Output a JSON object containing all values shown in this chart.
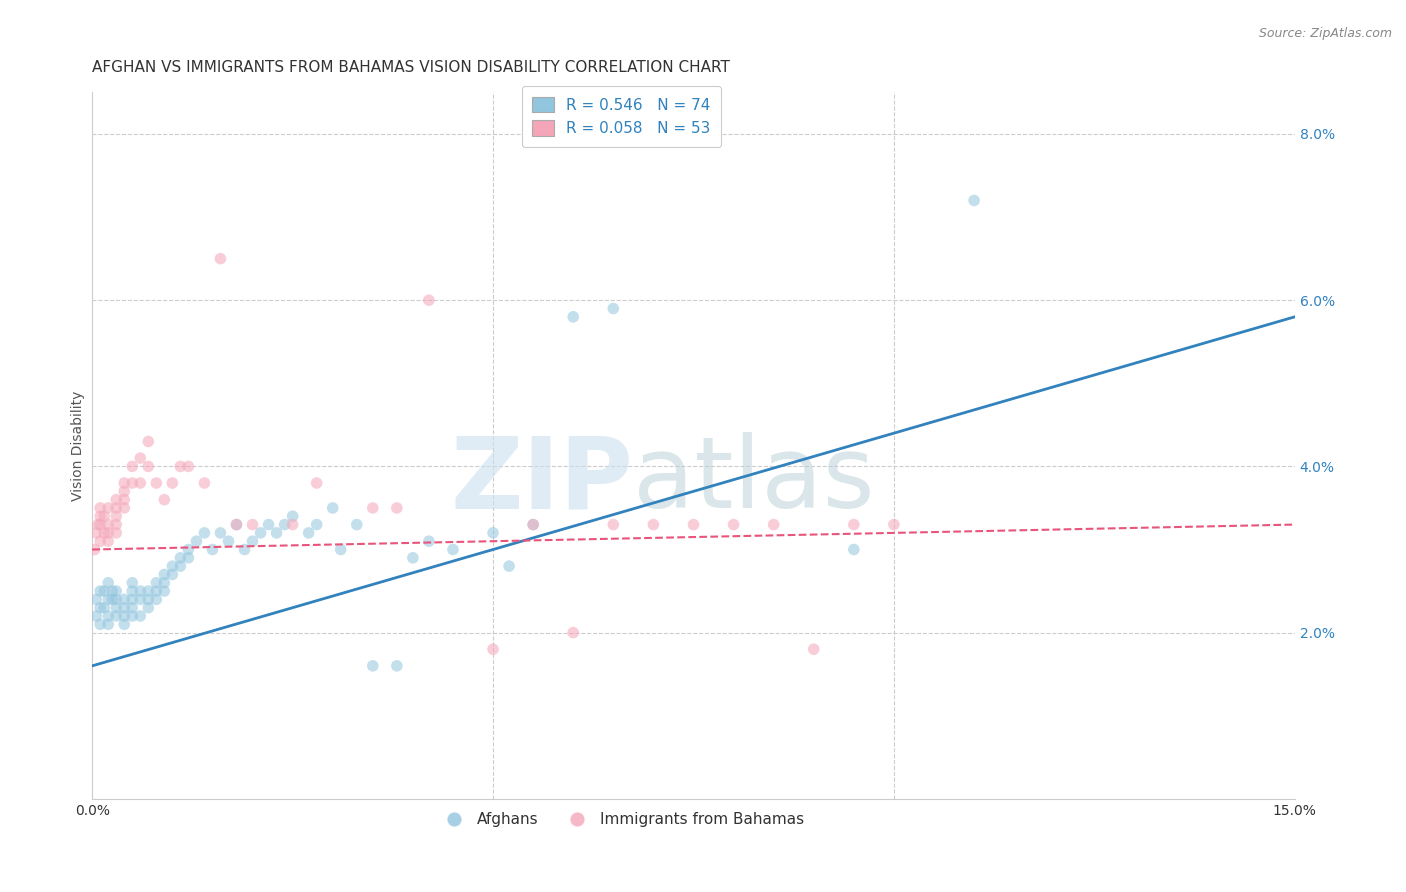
{
  "title": "AFGHAN VS IMMIGRANTS FROM BAHAMAS VISION DISABILITY CORRELATION CHART",
  "source": "Source: ZipAtlas.com",
  "ylabel": "Vision Disability",
  "xlim": [
    0.0,
    0.15
  ],
  "ylim": [
    0.0,
    0.085
  ],
  "xticks": [
    0.0,
    0.05,
    0.1,
    0.15
  ],
  "xticklabels": [
    "0.0%",
    "",
    "",
    "15.0%"
  ],
  "yticks_right": [
    0.02,
    0.04,
    0.06,
    0.08
  ],
  "yticklabels_right": [
    "2.0%",
    "4.0%",
    "6.0%",
    "8.0%"
  ],
  "blue_color": "#92c5de",
  "blue_color_line": "#3182bd",
  "pink_color": "#f4a5b8",
  "pink_color_line": "#e8547a",
  "background_color": "#ffffff",
  "grid_color": "#cccccc",
  "legend_r_blue": "R = 0.546",
  "legend_n_blue": "N = 74",
  "legend_r_pink": "R = 0.058",
  "legend_n_pink": "N = 53",
  "label_afghans": "Afghans",
  "label_bahamas": "Immigrants from Bahamas",
  "afghans_x": [
    0.0005,
    0.0005,
    0.001,
    0.001,
    0.001,
    0.0015,
    0.0015,
    0.002,
    0.002,
    0.002,
    0.002,
    0.0025,
    0.0025,
    0.003,
    0.003,
    0.003,
    0.003,
    0.004,
    0.004,
    0.004,
    0.004,
    0.005,
    0.005,
    0.005,
    0.005,
    0.005,
    0.006,
    0.006,
    0.006,
    0.007,
    0.007,
    0.007,
    0.008,
    0.008,
    0.008,
    0.009,
    0.009,
    0.009,
    0.01,
    0.01,
    0.011,
    0.011,
    0.012,
    0.012,
    0.013,
    0.014,
    0.015,
    0.016,
    0.017,
    0.018,
    0.019,
    0.02,
    0.021,
    0.022,
    0.023,
    0.024,
    0.025,
    0.027,
    0.028,
    0.03,
    0.031,
    0.033,
    0.035,
    0.038,
    0.04,
    0.042,
    0.045,
    0.05,
    0.052,
    0.055,
    0.06,
    0.065,
    0.095,
    0.11
  ],
  "afghans_y": [
    0.024,
    0.022,
    0.021,
    0.025,
    0.023,
    0.023,
    0.025,
    0.022,
    0.024,
    0.021,
    0.026,
    0.025,
    0.024,
    0.023,
    0.022,
    0.024,
    0.025,
    0.022,
    0.024,
    0.021,
    0.023,
    0.025,
    0.024,
    0.023,
    0.022,
    0.026,
    0.025,
    0.024,
    0.022,
    0.025,
    0.024,
    0.023,
    0.026,
    0.025,
    0.024,
    0.027,
    0.026,
    0.025,
    0.028,
    0.027,
    0.029,
    0.028,
    0.03,
    0.029,
    0.031,
    0.032,
    0.03,
    0.032,
    0.031,
    0.033,
    0.03,
    0.031,
    0.032,
    0.033,
    0.032,
    0.033,
    0.034,
    0.032,
    0.033,
    0.035,
    0.03,
    0.033,
    0.016,
    0.016,
    0.029,
    0.031,
    0.03,
    0.032,
    0.028,
    0.033,
    0.058,
    0.059,
    0.03,
    0.072
  ],
  "bahamas_x": [
    0.0003,
    0.0005,
    0.0007,
    0.001,
    0.001,
    0.001,
    0.001,
    0.0015,
    0.0015,
    0.002,
    0.002,
    0.002,
    0.002,
    0.003,
    0.003,
    0.003,
    0.003,
    0.003,
    0.004,
    0.004,
    0.004,
    0.004,
    0.005,
    0.005,
    0.006,
    0.006,
    0.007,
    0.007,
    0.008,
    0.009,
    0.01,
    0.011,
    0.012,
    0.014,
    0.016,
    0.018,
    0.02,
    0.025,
    0.028,
    0.035,
    0.038,
    0.042,
    0.05,
    0.055,
    0.06,
    0.065,
    0.07,
    0.075,
    0.08,
    0.085,
    0.09,
    0.095,
    0.1
  ],
  "bahamas_y": [
    0.03,
    0.032,
    0.033,
    0.035,
    0.033,
    0.031,
    0.034,
    0.032,
    0.034,
    0.033,
    0.035,
    0.032,
    0.031,
    0.036,
    0.033,
    0.034,
    0.032,
    0.035,
    0.037,
    0.035,
    0.036,
    0.038,
    0.038,
    0.04,
    0.041,
    0.038,
    0.043,
    0.04,
    0.038,
    0.036,
    0.038,
    0.04,
    0.04,
    0.038,
    0.065,
    0.033,
    0.033,
    0.033,
    0.038,
    0.035,
    0.035,
    0.06,
    0.018,
    0.033,
    0.02,
    0.033,
    0.033,
    0.033,
    0.033,
    0.033,
    0.018,
    0.033,
    0.033
  ],
  "blue_line_x": [
    0.0,
    0.15
  ],
  "blue_line_y": [
    0.016,
    0.058
  ],
  "pink_line_x": [
    0.0,
    0.15
  ],
  "pink_line_y": [
    0.03,
    0.033
  ],
  "title_fontsize": 11,
  "axis_label_fontsize": 10,
  "tick_fontsize": 10,
  "legend_fontsize": 11,
  "marker_size": 70,
  "marker_alpha": 0.55
}
